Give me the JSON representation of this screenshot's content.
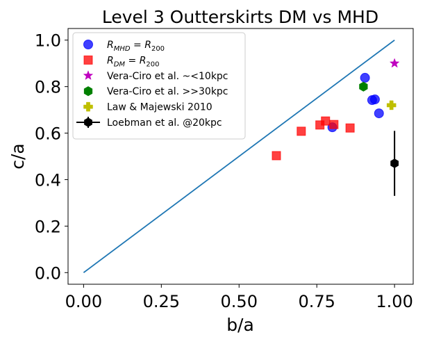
{
  "chart_data": {
    "type": "scatter",
    "title": "Level 3 Outterskirts DM vs MHD",
    "xlabel": "b/a",
    "ylabel": "c/a",
    "xlim": [
      -0.05,
      1.06
    ],
    "ylim": [
      -0.05,
      1.05
    ],
    "x_ticks": [
      0.0,
      0.25,
      0.5,
      0.75,
      1.0
    ],
    "x_tick_labels": [
      "0.00",
      "0.25",
      "0.50",
      "0.75",
      "1.00"
    ],
    "y_ticks": [
      0.0,
      0.2,
      0.4,
      0.6,
      0.8,
      1.0
    ],
    "y_tick_labels": [
      "0.0",
      "0.2",
      "0.4",
      "0.6",
      "0.8",
      "1.0"
    ],
    "grid": false,
    "legend_position": "top-left",
    "reference_line": {
      "x": [
        0.0,
        1.0
      ],
      "y": [
        0.0,
        1.0
      ],
      "color": "#1f77b4"
    },
    "series": [
      {
        "name": "R_MHD = R_200",
        "label_main": "R",
        "label_sub": "MHD",
        "label_rest": " = R",
        "label_sub2": "200",
        "marker": "circle",
        "color": "#0000ff",
        "x": [
          0.8,
          0.905,
          0.928,
          0.937,
          0.95
        ],
        "y": [
          0.625,
          0.838,
          0.742,
          0.745,
          0.685
        ]
      },
      {
        "name": "R_DM = R_200",
        "label_main": "R",
        "label_sub": "DM",
        "label_rest": " = R",
        "label_sub2": "200",
        "marker": "square",
        "color": "#ff0000",
        "x": [
          0.62,
          0.7,
          0.76,
          0.778,
          0.805,
          0.857
        ],
        "y": [
          0.503,
          0.608,
          0.635,
          0.652,
          0.637,
          0.622
        ]
      },
      {
        "name": "Vera-Ciro et al. ~<10kpc",
        "marker": "star",
        "color": "#bf00bf",
        "x": [
          1.0
        ],
        "y": [
          0.9
        ]
      },
      {
        "name": "Vera-Ciro et al. >>30kpc",
        "marker": "hexagon",
        "color": "#008000",
        "x": [
          0.9
        ],
        "y": [
          0.8
        ]
      },
      {
        "name": "Law & Majewski 2010",
        "marker": "plus",
        "color": "#bfbf00",
        "x": [
          0.99
        ],
        "y": [
          0.72
        ]
      },
      {
        "name": "Loebman et al. @20kpc",
        "marker": "errorbar",
        "color": "#000000",
        "x": [
          1.0
        ],
        "y": [
          0.47
        ],
        "yerr": [
          0.14
        ]
      }
    ]
  }
}
